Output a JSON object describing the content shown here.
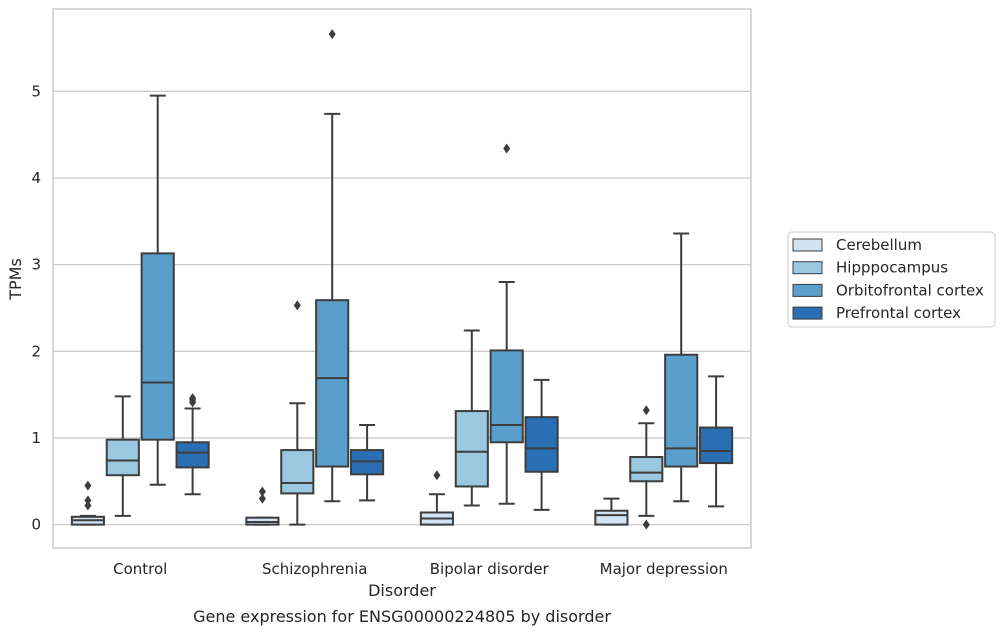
{
  "chart_data": {
    "type": "box",
    "title": "Gene expression for ENSG00000224805 by disorder",
    "xlabel": "Disorder",
    "ylabel": "TPMs",
    "ylim": [
      -0.27,
      5.95
    ],
    "yticks": [
      0,
      1,
      2,
      3,
      4,
      5
    ],
    "grid": true,
    "legend_position": "right",
    "categories": [
      "Control",
      "Schizophrenia",
      "Bipolar disorder",
      "Major depression"
    ],
    "series": [
      {
        "name": "Cerebellum",
        "color": "#d2e3f3",
        "boxes": [
          {
            "whislo": 0.0,
            "q1": 0.0,
            "med": 0.05,
            "q3": 0.09,
            "whishi": 0.1,
            "fliers": [
              0.22,
              0.28,
              0.45
            ]
          },
          {
            "whislo": 0.0,
            "q1": 0.0,
            "med": 0.03,
            "q3": 0.08,
            "whishi": 0.08,
            "fliers": [
              0.3,
              0.38
            ]
          },
          {
            "whislo": 0.0,
            "q1": 0.0,
            "med": 0.07,
            "q3": 0.14,
            "whishi": 0.35,
            "fliers": [
              0.57
            ]
          },
          {
            "whislo": 0.0,
            "q1": 0.0,
            "med": 0.11,
            "q3": 0.16,
            "whishi": 0.3,
            "fliers": []
          }
        ]
      },
      {
        "name": "Hipppocampus",
        "color": "#9ac8e0",
        "boxes": [
          {
            "whislo": 0.1,
            "q1": 0.57,
            "med": 0.74,
            "q3": 0.98,
            "whishi": 1.48,
            "fliers": []
          },
          {
            "whislo": 0.0,
            "q1": 0.36,
            "med": 0.48,
            "q3": 0.86,
            "whishi": 1.4,
            "fliers": [
              2.53
            ]
          },
          {
            "whislo": 0.22,
            "q1": 0.44,
            "med": 0.84,
            "q3": 1.31,
            "whishi": 2.24,
            "fliers": []
          },
          {
            "whislo": 0.1,
            "q1": 0.5,
            "med": 0.6,
            "q3": 0.78,
            "whishi": 1.17,
            "fliers": [
              0.0,
              1.32
            ]
          }
        ]
      },
      {
        "name": "Orbitofrontal cortex",
        "color": "#5a9fcb",
        "boxes": [
          {
            "whislo": 0.46,
            "q1": 0.98,
            "med": 1.64,
            "q3": 3.13,
            "whishi": 4.95,
            "fliers": []
          },
          {
            "whislo": 0.27,
            "q1": 0.67,
            "med": 1.69,
            "q3": 2.59,
            "whishi": 4.74,
            "fliers": [
              5.66
            ]
          },
          {
            "whislo": 0.24,
            "q1": 0.95,
            "med": 1.15,
            "q3": 2.01,
            "whishi": 2.8,
            "fliers": [
              4.34
            ]
          },
          {
            "whislo": 0.27,
            "q1": 0.67,
            "med": 0.88,
            "q3": 1.96,
            "whishi": 3.36,
            "fliers": []
          }
        ]
      },
      {
        "name": "Prefrontal cortex",
        "color": "#2a6eb3",
        "boxes": [
          {
            "whislo": 0.35,
            "q1": 0.66,
            "med": 0.83,
            "q3": 0.95,
            "whishi": 1.34,
            "fliers": [
              1.41,
              1.44,
              1.46
            ]
          },
          {
            "whislo": 0.28,
            "q1": 0.58,
            "med": 0.73,
            "q3": 0.86,
            "whishi": 1.15,
            "fliers": []
          },
          {
            "whislo": 0.17,
            "q1": 0.61,
            "med": 0.88,
            "q3": 1.24,
            "whishi": 1.67,
            "fliers": []
          },
          {
            "whislo": 0.21,
            "q1": 0.71,
            "med": 0.85,
            "q3": 1.12,
            "whishi": 1.71,
            "fliers": []
          }
        ]
      }
    ]
  }
}
